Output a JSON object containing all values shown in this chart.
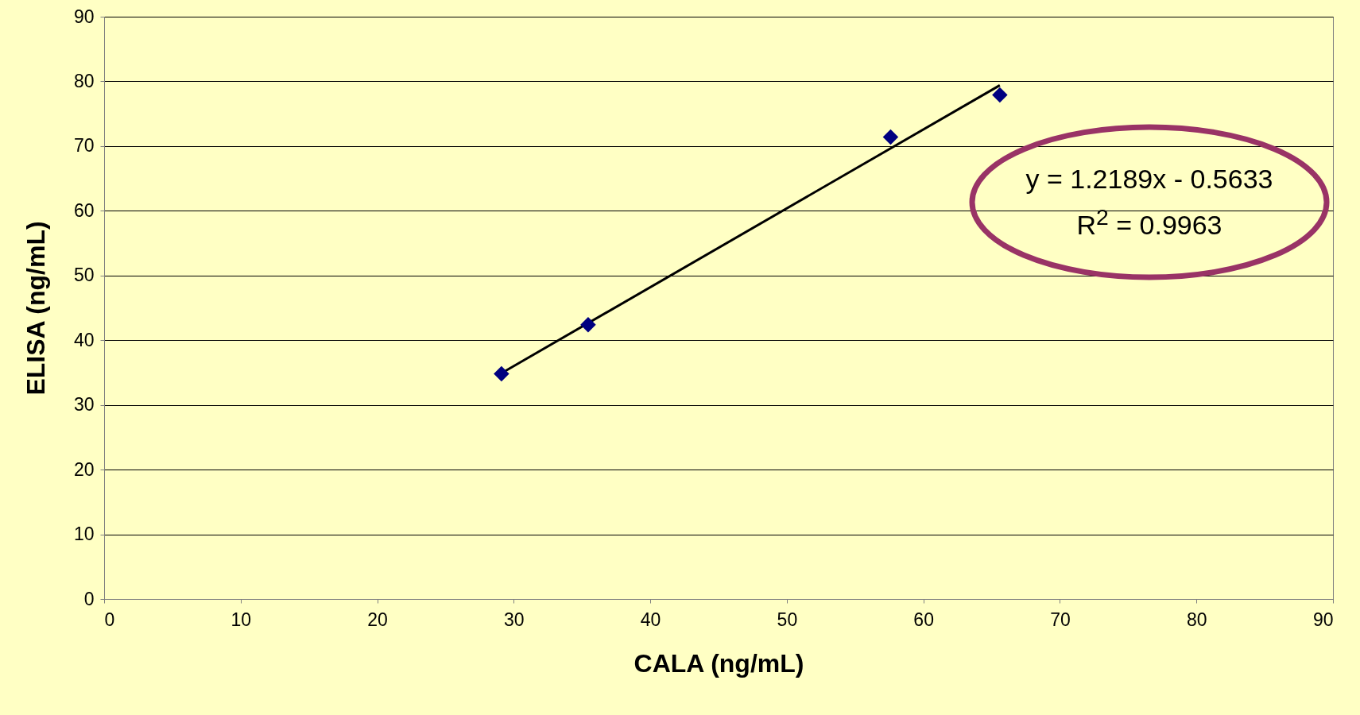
{
  "chart_data": {
    "type": "scatter",
    "xlabel": "CALA (ng/mL)",
    "ylabel": "ELISA (ng/mL)",
    "series": [
      {
        "color": "#000080",
        "marker": "diamond",
        "x": [
          29.1,
          35.45,
          57.6,
          65.6
        ],
        "values": [
          34.8,
          42.4,
          71.4,
          77.9
        ]
      },
      {
        "type": "line",
        "color": "#000000",
        "x": [
          29.1,
          65.6
        ],
        "values": [
          34.9,
          79.4
        ]
      }
    ],
    "xlim": [
      0,
      90
    ],
    "xticks": [
      0,
      10,
      20,
      30,
      40,
      50,
      60,
      70,
      80,
      90
    ],
    "ylim": [
      0,
      90
    ],
    "yticks": [
      0,
      10,
      20,
      30,
      40,
      50,
      60,
      70,
      80,
      90
    ],
    "grid": "y",
    "line_style": "solid",
    "annotations": [
      "y = 1.2189x - 0.5633",
      "R$^{2}$ = 0.9963"
    ]
  }
}
